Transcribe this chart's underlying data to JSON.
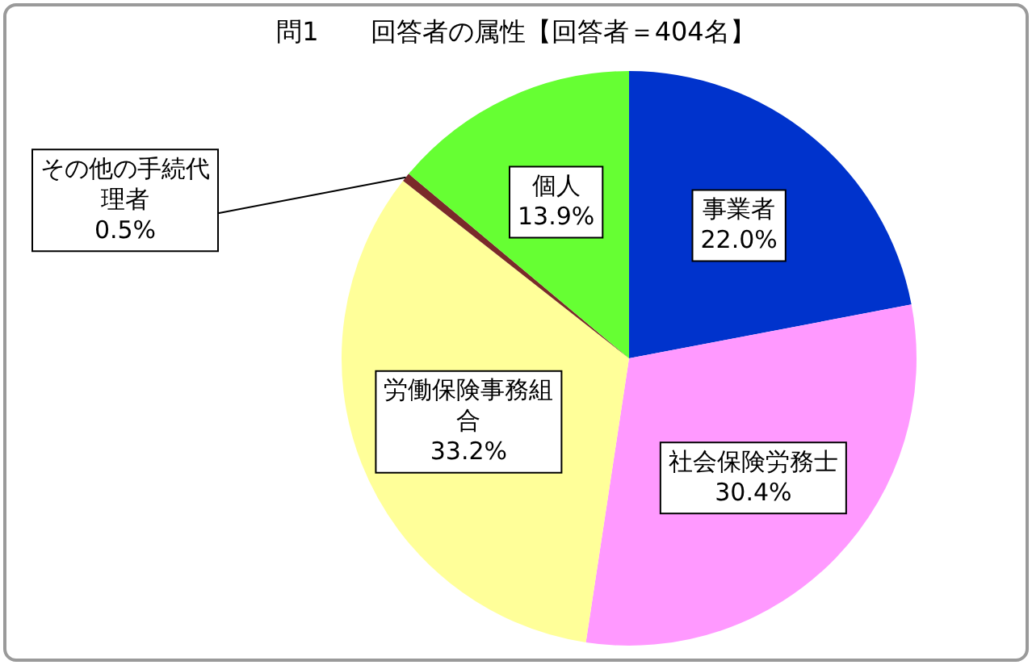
{
  "chart_data": {
    "type": "pie",
    "title": "問1　　回答者の属性【回答者＝404名】",
    "categories": [
      "事業者",
      "社会保険労務士",
      "労働保険事務組合",
      "その他の手続代理者",
      "個人"
    ],
    "values": [
      22.0,
      30.4,
      33.2,
      0.5,
      13.9
    ],
    "colors": [
      "#0033cc",
      "#ff99ff",
      "#ffff99",
      "#7a2a2a",
      "#66ff33"
    ],
    "value_labels": [
      "22.0%",
      "30.4%",
      "33.2%",
      "0.5%",
      "13.9%"
    ],
    "legend": false
  }
}
